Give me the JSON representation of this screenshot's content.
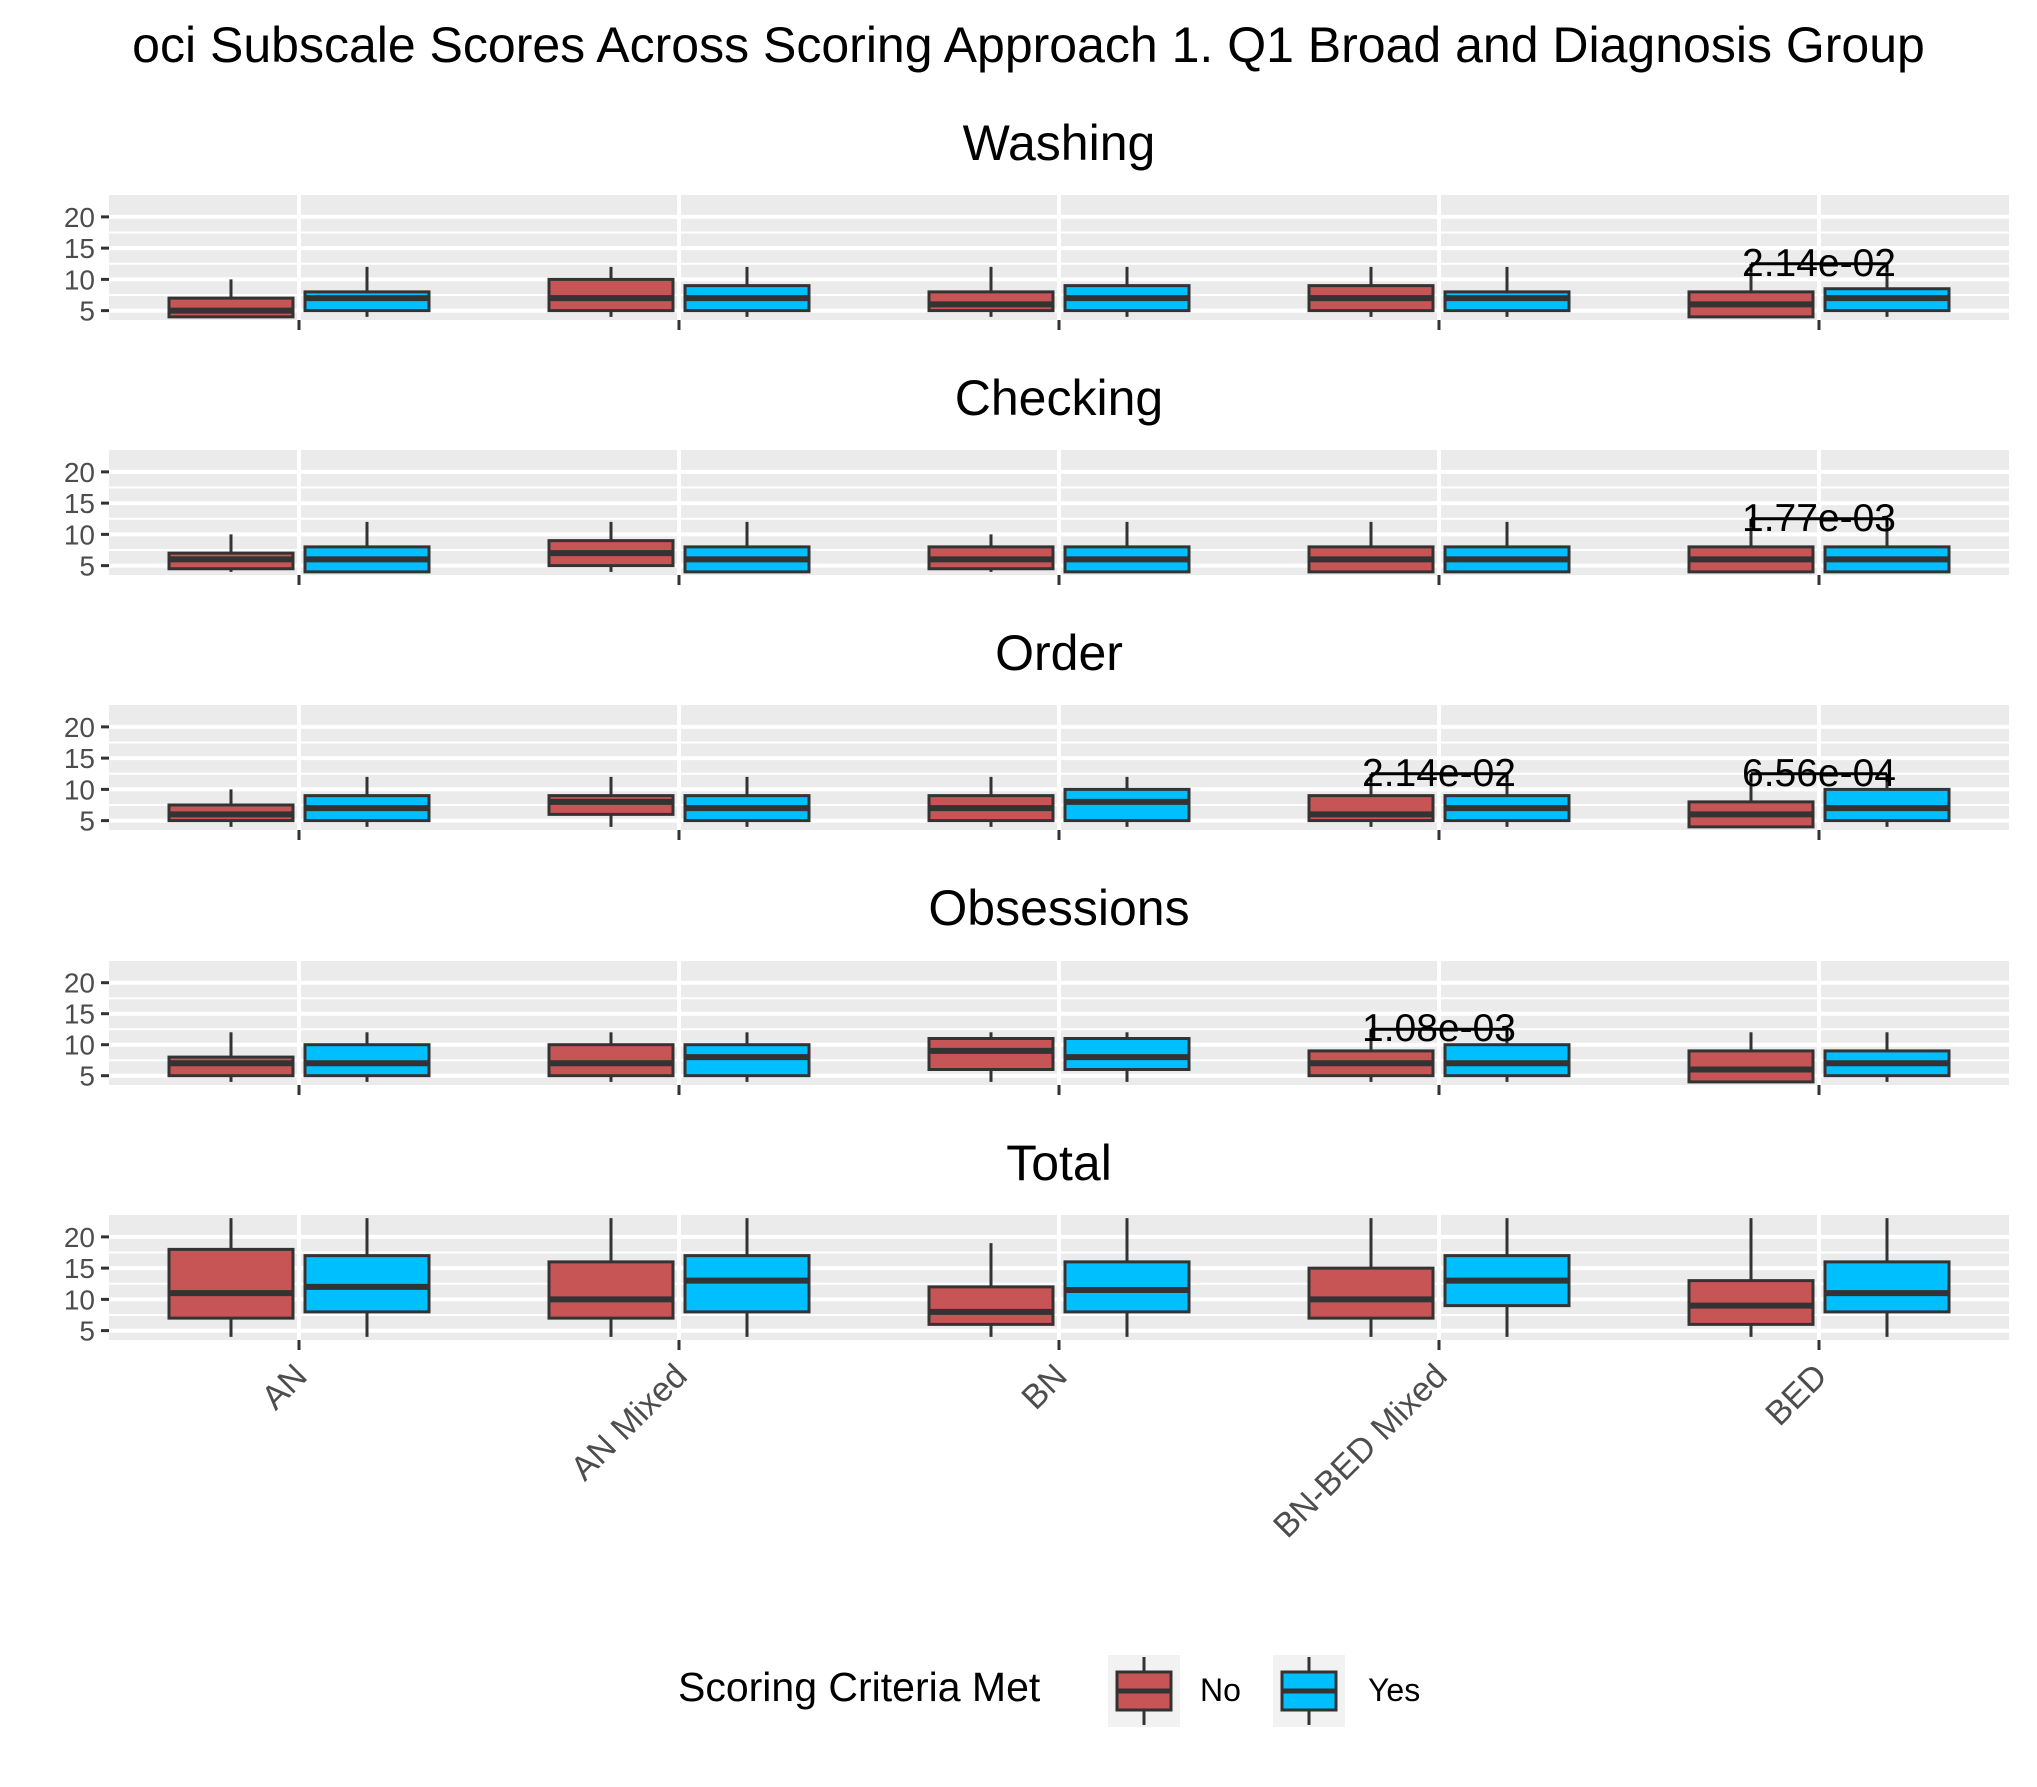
{
  "chart_data": {
    "type": "box",
    "title": "oci Subscale Scores Across Scoring Approach 1. Q1 Broad and Diagnosis Group",
    "categories": [
      "AN",
      "AN Mixed",
      "BN",
      "BN-BED Mixed",
      "BED"
    ],
    "yticks": [
      5,
      10,
      15,
      20
    ],
    "ylim": [
      3.5,
      23.5
    ],
    "grid": true,
    "legend": {
      "title": "Scoring Criteria Met",
      "position": "bottom",
      "entries": [
        {
          "label": "No",
          "color": "#c85555"
        },
        {
          "label": "Yes",
          "color": "#00bfff"
        }
      ]
    },
    "facets": [
      {
        "name": "Washing",
        "series": [
          {
            "name": "No",
            "boxes": [
              {
                "min": 4,
                "q1": 4,
                "median": 5,
                "q3": 7,
                "max": 10
              },
              {
                "min": 4,
                "q1": 5,
                "median": 7,
                "q3": 10,
                "max": 12
              },
              {
                "min": 4,
                "q1": 5,
                "median": 6,
                "q3": 8,
                "max": 12
              },
              {
                "min": 4,
                "q1": 5,
                "median": 7,
                "q3": 9,
                "max": 12
              },
              {
                "min": 4,
                "q1": 4,
                "median": 6,
                "q3": 8,
                "max": 12
              }
            ]
          },
          {
            "name": "Yes",
            "boxes": [
              {
                "min": 4,
                "q1": 5,
                "median": 7,
                "q3": 8,
                "max": 12
              },
              {
                "min": 4,
                "q1": 5,
                "median": 7,
                "q3": 9,
                "max": 12
              },
              {
                "min": 4,
                "q1": 5,
                "median": 7,
                "q3": 9,
                "max": 12
              },
              {
                "min": 4,
                "q1": 5,
                "median": 7,
                "q3": 8,
                "max": 12
              },
              {
                "min": 4,
                "q1": 5,
                "median": 7,
                "q3": 8.5,
                "max": 12
              }
            ]
          }
        ],
        "annotations": [
          {
            "category": "BED",
            "label": "2.14e-02",
            "y": 12.5
          }
        ]
      },
      {
        "name": "Checking",
        "series": [
          {
            "name": "No",
            "boxes": [
              {
                "min": 4,
                "q1": 4.5,
                "median": 6,
                "q3": 7,
                "max": 10
              },
              {
                "min": 4,
                "q1": 5,
                "median": 7,
                "q3": 9,
                "max": 12
              },
              {
                "min": 4,
                "q1": 4.5,
                "median": 6,
                "q3": 8,
                "max": 10
              },
              {
                "min": 4,
                "q1": 4,
                "median": 6,
                "q3": 8,
                "max": 12
              },
              {
                "min": 4,
                "q1": 4,
                "median": 6,
                "q3": 8,
                "max": 12
              }
            ]
          },
          {
            "name": "Yes",
            "boxes": [
              {
                "min": 4,
                "q1": 4,
                "median": 6,
                "q3": 8,
                "max": 12
              },
              {
                "min": 4,
                "q1": 4,
                "median": 6,
                "q3": 8,
                "max": 12
              },
              {
                "min": 4,
                "q1": 4,
                "median": 6,
                "q3": 8,
                "max": 12
              },
              {
                "min": 4,
                "q1": 4,
                "median": 6,
                "q3": 8,
                "max": 12
              },
              {
                "min": 4,
                "q1": 4,
                "median": 6,
                "q3": 8,
                "max": 12
              }
            ]
          }
        ],
        "annotations": [
          {
            "category": "BED",
            "label": "1.77e-03",
            "y": 12.5
          }
        ]
      },
      {
        "name": "Order",
        "series": [
          {
            "name": "No",
            "boxes": [
              {
                "min": 4,
                "q1": 5,
                "median": 6,
                "q3": 7.5,
                "max": 10
              },
              {
                "min": 4,
                "q1": 6,
                "median": 8,
                "q3": 9,
                "max": 12
              },
              {
                "min": 4,
                "q1": 5,
                "median": 7,
                "q3": 9,
                "max": 12
              },
              {
                "min": 4,
                "q1": 5,
                "median": 6,
                "q3": 9,
                "max": 12
              },
              {
                "min": 4,
                "q1": 4,
                "median": 6,
                "q3": 8,
                "max": 12
              }
            ]
          },
          {
            "name": "Yes",
            "boxes": [
              {
                "min": 4,
                "q1": 5,
                "median": 7,
                "q3": 9,
                "max": 12
              },
              {
                "min": 4,
                "q1": 5,
                "median": 7,
                "q3": 9,
                "max": 12
              },
              {
                "min": 4,
                "q1": 5,
                "median": 8,
                "q3": 10,
                "max": 12
              },
              {
                "min": 4,
                "q1": 5,
                "median": 7,
                "q3": 9,
                "max": 12
              },
              {
                "min": 4,
                "q1": 5,
                "median": 7,
                "q3": 10,
                "max": 12
              }
            ]
          }
        ],
        "annotations": [
          {
            "category": "BN-BED Mixed",
            "label": "2.14e-02",
            "y": 12.5
          },
          {
            "category": "BED",
            "label": "6.56e-04",
            "y": 12.5
          }
        ]
      },
      {
        "name": "Obsessions",
        "series": [
          {
            "name": "No",
            "boxes": [
              {
                "min": 4,
                "q1": 5,
                "median": 7,
                "q3": 8,
                "max": 12
              },
              {
                "min": 4,
                "q1": 5,
                "median": 7,
                "q3": 10,
                "max": 12
              },
              {
                "min": 4,
                "q1": 6,
                "median": 9,
                "q3": 11,
                "max": 12
              },
              {
                "min": 4,
                "q1": 5,
                "median": 7,
                "q3": 9,
                "max": 12
              },
              {
                "min": 4,
                "q1": 4,
                "median": 6,
                "q3": 9,
                "max": 12
              }
            ]
          },
          {
            "name": "Yes",
            "boxes": [
              {
                "min": 4,
                "q1": 5,
                "median": 7,
                "q3": 10,
                "max": 12
              },
              {
                "min": 4,
                "q1": 5,
                "median": 8,
                "q3": 10,
                "max": 12
              },
              {
                "min": 4,
                "q1": 6,
                "median": 8,
                "q3": 11,
                "max": 12
              },
              {
                "min": 4,
                "q1": 5,
                "median": 7,
                "q3": 10,
                "max": 12
              },
              {
                "min": 4,
                "q1": 5,
                "median": 7,
                "q3": 9,
                "max": 12
              }
            ]
          }
        ],
        "annotations": [
          {
            "category": "BN-BED Mixed",
            "label": "1.08e-03",
            "y": 12.5
          }
        ]
      },
      {
        "name": "Total",
        "series": [
          {
            "name": "No",
            "boxes": [
              {
                "min": 4,
                "q1": 7,
                "median": 11,
                "q3": 18,
                "max": 23
              },
              {
                "min": 4,
                "q1": 7,
                "median": 10,
                "q3": 16,
                "max": 23
              },
              {
                "min": 4,
                "q1": 6,
                "median": 8,
                "q3": 12,
                "max": 19
              },
              {
                "min": 4,
                "q1": 7,
                "median": 10,
                "q3": 15,
                "max": 23
              },
              {
                "min": 4,
                "q1": 6,
                "median": 9,
                "q3": 13,
                "max": 23
              }
            ]
          },
          {
            "name": "Yes",
            "boxes": [
              {
                "min": 4,
                "q1": 8,
                "median": 12,
                "q3": 17,
                "max": 23
              },
              {
                "min": 4,
                "q1": 8,
                "median": 13,
                "q3": 17,
                "max": 23
              },
              {
                "min": 4,
                "q1": 8,
                "median": 11.5,
                "q3": 16,
                "max": 23
              },
              {
                "min": 4,
                "q1": 9,
                "median": 13,
                "q3": 17,
                "max": 23
              },
              {
                "min": 4,
                "q1": 8,
                "median": 11,
                "q3": 16,
                "max": 23
              }
            ]
          }
        ],
        "annotations": []
      }
    ]
  }
}
